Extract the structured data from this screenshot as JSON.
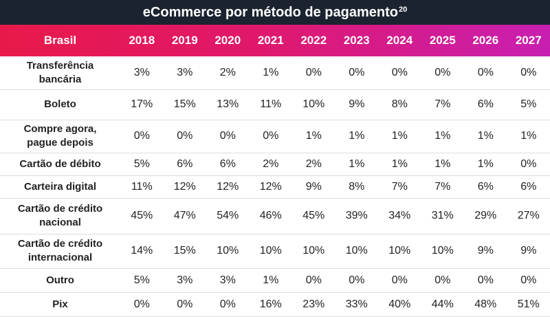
{
  "header": {
    "title": "eCommerce por método de pagamento",
    "title_note": "20"
  },
  "table": {
    "columns": [
      "Brasil",
      "2018",
      "2019",
      "2020",
      "2021",
      "2022",
      "2023",
      "2024",
      "2025",
      "2026",
      "2027"
    ],
    "rows": [
      [
        "Transferência\nbancária",
        "3%",
        "3%",
        "2%",
        "1%",
        "0%",
        "0%",
        "0%",
        "0%",
        "0%",
        "0%"
      ],
      [
        "Boleto",
        "17%",
        "15%",
        "13%",
        "11%",
        "10%",
        "9%",
        "8%",
        "7%",
        "6%",
        "5%"
      ],
      [
        "Compre agora,\npague depois",
        "0%",
        "0%",
        "0%",
        "0%",
        "1%",
        "1%",
        "1%",
        "1%",
        "1%",
        "1%"
      ],
      [
        "Cartão de débito",
        "5%",
        "6%",
        "6%",
        "2%",
        "2%",
        "1%",
        "1%",
        "1%",
        "1%",
        "0%"
      ],
      [
        "Carteira digital",
        "11%",
        "12%",
        "12%",
        "12%",
        "9%",
        "8%",
        "7%",
        "7%",
        "6%",
        "6%"
      ],
      [
        "Cartão de crédito\nnacional",
        "45%",
        "47%",
        "54%",
        "46%",
        "45%",
        "39%",
        "34%",
        "31%",
        "29%",
        "27%"
      ],
      [
        "Cartão de crédito\ninternacional",
        "14%",
        "15%",
        "10%",
        "10%",
        "10%",
        "10%",
        "10%",
        "10%",
        "9%",
        "9%"
      ],
      [
        "Outro",
        "5%",
        "3%",
        "3%",
        "1%",
        "0%",
        "0%",
        "0%",
        "0%",
        "0%",
        "0%"
      ],
      [
        "Pix",
        "0%",
        "0%",
        "0%",
        "16%",
        "23%",
        "33%",
        "40%",
        "44%",
        "48%",
        "51%"
      ]
    ]
  }
}
